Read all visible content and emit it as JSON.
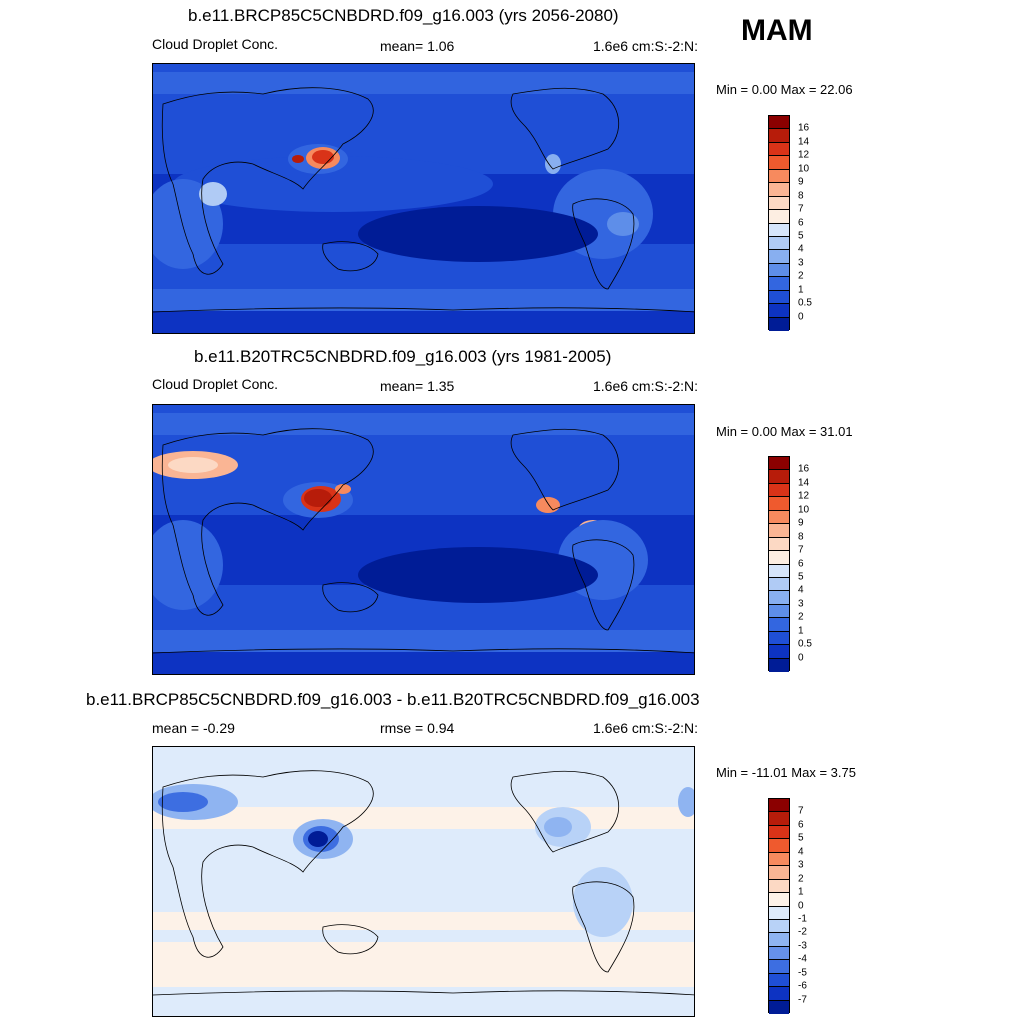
{
  "season": "MAM",
  "panels": [
    {
      "title": "b.e11.BRCP85C5CNBDRD.f09_g16.003 (yrs 2056-2080)",
      "left": "Cloud Droplet Conc.",
      "center": "mean=   1.06",
      "right": "1.6e6 cm:S:-2:N:",
      "minmax": "Min =   0.00 Max =  22.06",
      "colorbar_labels": [
        "16",
        "14",
        "12",
        "10",
        "9",
        "8",
        "7",
        "6",
        "5",
        "4",
        "3",
        "2",
        "1",
        "0.5",
        "0"
      ],
      "colorbar_colors": [
        "#8b0000",
        "#b71c0a",
        "#d93318",
        "#ef5a2e",
        "#f78a5e",
        "#fab594",
        "#fcd9c4",
        "#fdeee2",
        "#d6e5fb",
        "#b0cbf5",
        "#88aff0",
        "#5e8ee9",
        "#3366e0",
        "#1f4fd6",
        "#0d33c2",
        "#001c96"
      ]
    },
    {
      "title": "b.e11.B20TRC5CNBDRD.f09_g16.003 (yrs 1981-2005)",
      "left": "Cloud Droplet Conc.",
      "center": "mean=   1.35",
      "right": "1.6e6 cm:S:-2:N:",
      "minmax": "Min =   0.00 Max =  31.01",
      "colorbar_labels": [
        "16",
        "14",
        "12",
        "10",
        "9",
        "8",
        "7",
        "6",
        "5",
        "4",
        "3",
        "2",
        "1",
        "0.5",
        "0"
      ],
      "colorbar_colors": [
        "#8b0000",
        "#b71c0a",
        "#d93318",
        "#ef5a2e",
        "#f78a5e",
        "#fab594",
        "#fcd9c4",
        "#fdeee2",
        "#d6e5fb",
        "#b0cbf5",
        "#88aff0",
        "#5e8ee9",
        "#3366e0",
        "#1f4fd6",
        "#0d33c2",
        "#001c96"
      ]
    },
    {
      "title": "b.e11.BRCP85C5CNBDRD.f09_g16.003 - b.e11.B20TRC5CNBDRD.f09_g16.003",
      "left": "mean =  -0.29",
      "center": "rmse =   0.94",
      "right": "1.6e6 cm:S:-2:N:",
      "minmax": "Min = -11.01 Max =   3.75",
      "colorbar_labels": [
        "7",
        "6",
        "5",
        "4",
        "3",
        "2",
        "1",
        "0",
        "-1",
        "-2",
        "-3",
        "-4",
        "-5",
        "-6",
        "-7"
      ],
      "colorbar_colors": [
        "#8b0000",
        "#b71c0a",
        "#d93318",
        "#ef5a2e",
        "#f78a5e",
        "#fab594",
        "#fcd9c4",
        "#fdf2e8",
        "#deebfb",
        "#b8d2f7",
        "#8fb4f1",
        "#6691ea",
        "#3d6ee1",
        "#1f4fd6",
        "#0d33c2",
        "#001c96"
      ]
    }
  ]
}
